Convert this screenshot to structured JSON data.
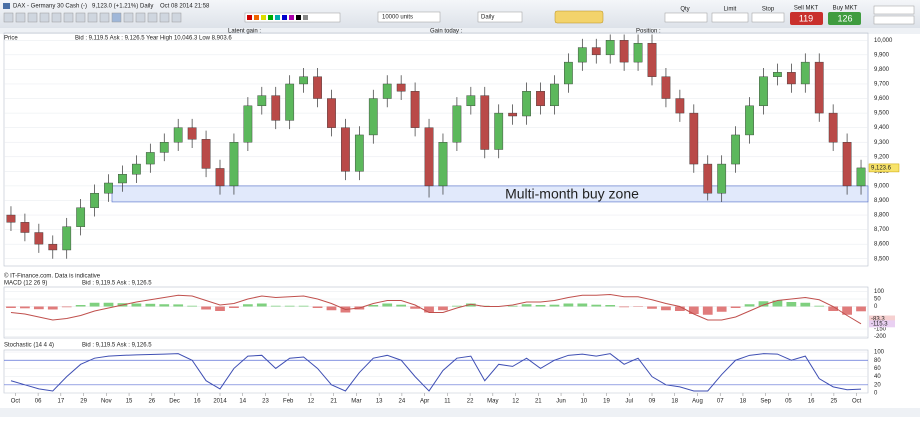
{
  "header": {
    "instrument": "DAX - Germany 30 Cash (-)",
    "quote": "9,123.0 (+1.21%)",
    "period": "Daily",
    "timestamp": "Oct 08 2014 21:58",
    "units": "10000 units",
    "interval": "Daily",
    "qty_label": "Qty",
    "limit_label": "Limit",
    "stop_label": "Stop",
    "sell_label": "Sell MKT",
    "buy_label": "Buy MKT",
    "sell_price": "119",
    "buy_price": "126",
    "latent_gain": "Latent gain :",
    "gain_today": "Gain today :",
    "position": "Position :"
  },
  "chart_data": {
    "type": "candlestick",
    "panel_title": "Price",
    "quote": "Bid : 9,119.5 Ask : 9,126.5 Year High 10,046.3 Low 8,903.6",
    "credit": "© IT-Finance.com. Data is indicative",
    "x_labels": [
      "Oct",
      "06",
      "17",
      "29",
      "Nov",
      "15",
      "26",
      "Dec",
      "16",
      "2014",
      "14",
      "23",
      "Feb",
      "12",
      "21",
      "Mar",
      "13",
      "24",
      "Apr",
      "11",
      "22",
      "May",
      "12",
      "21",
      "Jun",
      "10",
      "19",
      "Jul",
      "09",
      "18",
      "Aug",
      "07",
      "18",
      "Sep",
      "05",
      "16",
      "25",
      "Oct"
    ],
    "candles": [
      [
        8800,
        8860,
        8690,
        8750
      ],
      [
        8750,
        8810,
        8620,
        8680
      ],
      [
        8680,
        8740,
        8540,
        8600
      ],
      [
        8600,
        8660,
        8500,
        8560
      ],
      [
        8560,
        8780,
        8500,
        8720
      ],
      [
        8720,
        8910,
        8660,
        8850
      ],
      [
        8850,
        9010,
        8790,
        8950
      ],
      [
        8950,
        9080,
        8890,
        9020
      ],
      [
        9020,
        9140,
        8960,
        9080
      ],
      [
        9080,
        9210,
        9020,
        9150
      ],
      [
        9150,
        9290,
        9090,
        9230
      ],
      [
        9230,
        9360,
        9170,
        9300
      ],
      [
        9300,
        9460,
        9240,
        9400
      ],
      [
        9400,
        9460,
        9260,
        9320
      ],
      [
        9320,
        9380,
        9060,
        9120
      ],
      [
        9120,
        9180,
        8940,
        9000
      ],
      [
        9000,
        9360,
        8940,
        9300
      ],
      [
        9300,
        9610,
        9240,
        9550
      ],
      [
        9550,
        9680,
        9490,
        9620
      ],
      [
        9620,
        9680,
        9390,
        9450
      ],
      [
        9450,
        9760,
        9390,
        9700
      ],
      [
        9700,
        9810,
        9640,
        9750
      ],
      [
        9750,
        9810,
        9540,
        9600
      ],
      [
        9600,
        9660,
        9340,
        9400
      ],
      [
        9400,
        9460,
        9040,
        9100
      ],
      [
        9100,
        9410,
        9040,
        9350
      ],
      [
        9350,
        9660,
        9290,
        9600
      ],
      [
        9600,
        9760,
        9540,
        9700
      ],
      [
        9700,
        9760,
        9590,
        9650
      ],
      [
        9650,
        9710,
        9340,
        9400
      ],
      [
        9400,
        9460,
        8920,
        9000
      ],
      [
        9000,
        9360,
        8940,
        9300
      ],
      [
        9300,
        9610,
        9240,
        9550
      ],
      [
        9550,
        9680,
        9490,
        9620
      ],
      [
        9620,
        9680,
        9190,
        9250
      ],
      [
        9250,
        9560,
        9190,
        9500
      ],
      [
        9500,
        9560,
        9420,
        9480
      ],
      [
        9480,
        9710,
        9420,
        9650
      ],
      [
        9650,
        9710,
        9490,
        9550
      ],
      [
        9550,
        9760,
        9490,
        9700
      ],
      [
        9700,
        9910,
        9640,
        9850
      ],
      [
        9850,
        10010,
        9790,
        9950
      ],
      [
        9950,
        10010,
        9840,
        9900
      ],
      [
        9900,
        10040,
        9840,
        10000
      ],
      [
        10000,
        10040,
        9790,
        9850
      ],
      [
        9850,
        10040,
        9790,
        9980
      ],
      [
        9980,
        10040,
        9690,
        9750
      ],
      [
        9750,
        9810,
        9540,
        9600
      ],
      [
        9600,
        9660,
        9440,
        9500
      ],
      [
        9500,
        9560,
        9090,
        9150
      ],
      [
        9150,
        9210,
        8900,
        8950
      ],
      [
        8950,
        9210,
        8890,
        9150
      ],
      [
        9150,
        9410,
        9090,
        9350
      ],
      [
        9350,
        9610,
        9290,
        9550
      ],
      [
        9550,
        9810,
        9490,
        9750
      ],
      [
        9750,
        9840,
        9690,
        9780
      ],
      [
        9780,
        9840,
        9640,
        9700
      ],
      [
        9700,
        9910,
        9640,
        9850
      ],
      [
        9850,
        9910,
        9440,
        9500
      ],
      [
        9500,
        9560,
        9240,
        9300
      ],
      [
        9300,
        9360,
        8940,
        9000
      ],
      [
        9000,
        9180,
        8940,
        9123.6
      ]
    ],
    "up_color": "#5cb85c",
    "down_color": "#b94a48",
    "grid": true,
    "ylim": [
      8450,
      10050
    ],
    "yticks": [
      {
        "value": 8500,
        "label": "8,500"
      },
      {
        "value": 8600,
        "label": "8,600"
      },
      {
        "value": 8700,
        "label": "8,700"
      },
      {
        "value": 8800,
        "label": "8,800"
      },
      {
        "value": 8900,
        "label": "8,900"
      },
      {
        "value": 9000,
        "label": "9,000"
      },
      {
        "value": 9100,
        "label": "9,100"
      },
      {
        "value": 9200,
        "label": "9,200"
      },
      {
        "value": 9300,
        "label": "9,300"
      },
      {
        "value": 9400,
        "label": "9,400"
      },
      {
        "value": 9500,
        "label": "9,500"
      },
      {
        "value": 9600,
        "label": "9,600"
      },
      {
        "value": 9700,
        "label": "9,700"
      },
      {
        "value": 9800,
        "label": "9,800"
      },
      {
        "value": 9900,
        "label": "9,900"
      },
      {
        "value": 10000,
        "label": "10,000"
      }
    ],
    "last_price": {
      "value": 9123.6,
      "label": "9,123.6"
    },
    "annotation": {
      "text": "Multi-month buy zone",
      "range": [
        8890,
        9000
      ]
    },
    "macd": {
      "title": "MACD (12 26 9)",
      "quote": "Bid : 9,119.5 Ask : 9,126.5",
      "ylim": [
        -210,
        130
      ],
      "yticks": [
        100,
        50,
        0,
        -150,
        -200
      ],
      "line": [
        -40,
        -50,
        -70,
        -90,
        -80,
        -60,
        -30,
        -10,
        10,
        30,
        45,
        60,
        75,
        70,
        40,
        10,
        20,
        50,
        70,
        60,
        65,
        70,
        50,
        20,
        -20,
        -10,
        20,
        40,
        40,
        10,
        -40,
        -40,
        -10,
        15,
        0,
        0,
        10,
        30,
        30,
        40,
        60,
        75,
        75,
        80,
        65,
        65,
        45,
        20,
        0,
        -50,
        -90,
        -90,
        -70,
        -30,
        10,
        40,
        50,
        60,
        45,
        0,
        -60,
        -115.3
      ],
      "histogram": [
        -10,
        -12,
        -18,
        -20,
        -5,
        10,
        25,
        25,
        22,
        20,
        18,
        15,
        14,
        5,
        -20,
        -30,
        -10,
        15,
        20,
        5,
        5,
        5,
        -10,
        -25,
        -40,
        -20,
        10,
        20,
        12,
        -15,
        -40,
        -25,
        5,
        20,
        5,
        0,
        5,
        15,
        10,
        12,
        20,
        20,
        12,
        10,
        -5,
        -3,
        -15,
        -25,
        -30,
        -50,
        -55,
        -35,
        -10,
        15,
        35,
        40,
        30,
        25,
        5,
        -30,
        -55,
        -32
      ],
      "markers": [
        {
          "value": -83.3,
          "label": "-83.3"
        },
        {
          "value": -115.3,
          "label": "-115.3"
        }
      ]
    },
    "stochastic": {
      "title": "Stochastic (14 4 4)",
      "quote": "Bid : 9,119.5 Ask : 9,126.5",
      "ylim": [
        0,
        105
      ],
      "yticks": [
        100,
        80,
        60,
        40,
        20,
        0
      ],
      "levels": [
        80,
        20
      ],
      "k": [
        30,
        20,
        10,
        5,
        40,
        70,
        85,
        90,
        92,
        93,
        94,
        95,
        96,
        80,
        30,
        10,
        60,
        90,
        92,
        60,
        85,
        88,
        60,
        20,
        5,
        50,
        85,
        92,
        80,
        40,
        5,
        55,
        85,
        90,
        30,
        70,
        65,
        85,
        60,
        80,
        92,
        95,
        90,
        96,
        70,
        85,
        40,
        20,
        15,
        5,
        5,
        45,
        80,
        92,
        96,
        95,
        80,
        90,
        35,
        15,
        8,
        9.6
      ]
    }
  }
}
